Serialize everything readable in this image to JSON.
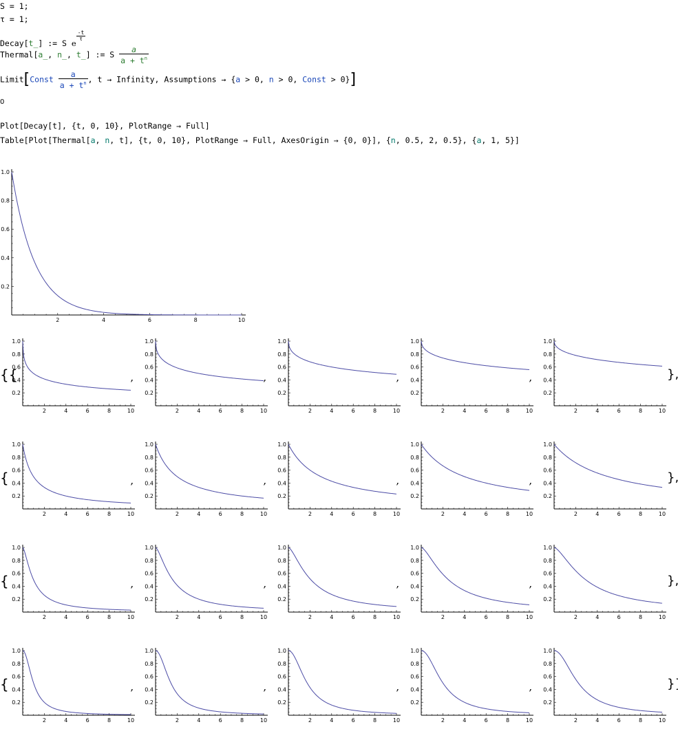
{
  "cells": {
    "line1": "S = 1;",
    "line2": "τ = 1;",
    "decay_lhs": "Decay[",
    "decay_arg": "t_",
    "decay_mid": "] := S ",
    "decay_e": "e",
    "decay_exp_num": "-t",
    "decay_exp_den": "τ",
    "thermal_lhs": "Thermal[",
    "thermal_a": "a_",
    "thermal_sep1": ", ",
    "thermal_n": "n_",
    "thermal_sep2": ", ",
    "thermal_t": "t_",
    "thermal_mid": "] := S ",
    "thermal_num": "a",
    "thermal_den_a": "a + t",
    "thermal_den_n": "n",
    "limit_head": "Limit",
    "limit_const": "Const",
    "limit_num": "a",
    "limit_den": "a + t",
    "limit_den_n": "n",
    "limit_mid": ", t → Infinity, Assumptions → {",
    "limit_a": "a",
    "limit_a_cond": " > 0, ",
    "limit_n": "n",
    "limit_n_cond": " > 0, ",
    "limit_const2": "Const",
    "limit_tail": " > 0}",
    "limit_output": "0",
    "plot_cmd": "Plot[Decay[t], {t, 0, 10}, PlotRange → Full]",
    "table_cmd_1": "Table[Plot[Thermal[",
    "table_a": "a",
    "table_cmd_2": ", ",
    "table_n": "n",
    "table_cmd_3": ", t], {t, 0, 10}, PlotRange → Full, AxesOrigin → {0, 0}], {",
    "table_n2": "n",
    "table_cmd_4": ", 0.5, 2, 0.5}, {",
    "table_a2": "a",
    "table_cmd_5": ", 1, 5}]"
  },
  "separators": {
    "open_double": "{{",
    "open_single": "{",
    "comma": ",",
    "close_row": "},",
    "close_final": "}}"
  },
  "colors": {
    "curve": "#4b4ba5",
    "axis": "#000000"
  },
  "chart_data": [
    {
      "type": "line",
      "title": "",
      "function": "Decay[t] = exp(-t)",
      "x": [
        0,
        0.5,
        1,
        1.5,
        2,
        3,
        4,
        5,
        6,
        8,
        10
      ],
      "y": [
        1.0,
        0.607,
        0.368,
        0.223,
        0.135,
        0.05,
        0.018,
        0.007,
        0.002,
        0.0003,
        5e-05
      ],
      "xlim": [
        0,
        10
      ],
      "ylim": [
        0,
        1.0
      ],
      "x_ticks": [
        "2",
        "4",
        "6",
        "8",
        "10"
      ],
      "y_ticks": [
        "0.2",
        "0.4",
        "0.6",
        "0.8",
        "1.0"
      ]
    },
    {
      "type": "line",
      "title": "",
      "function": "Thermal[a, n, t] = a / (a + t^n)",
      "grid_rows_n": [
        0.5,
        1.0,
        1.5,
        2.0
      ],
      "grid_cols_a": [
        1,
        2,
        3,
        4,
        5
      ],
      "final_values_at_t10": [
        [
          0.24,
          0.39,
          0.49,
          0.56,
          0.61
        ],
        [
          0.09,
          0.17,
          0.23,
          0.29,
          0.33
        ],
        [
          0.03,
          0.06,
          0.09,
          0.11,
          0.14
        ],
        [
          0.01,
          0.02,
          0.03,
          0.04,
          0.05
        ]
      ],
      "xlim": [
        0,
        10
      ],
      "ylim": [
        0,
        1.0
      ],
      "x_ticks": [
        "2",
        "4",
        "6",
        "8",
        "10"
      ],
      "y_ticks": [
        "0.2",
        "0.4",
        "0.6",
        "0.8",
        "1.0"
      ]
    }
  ]
}
